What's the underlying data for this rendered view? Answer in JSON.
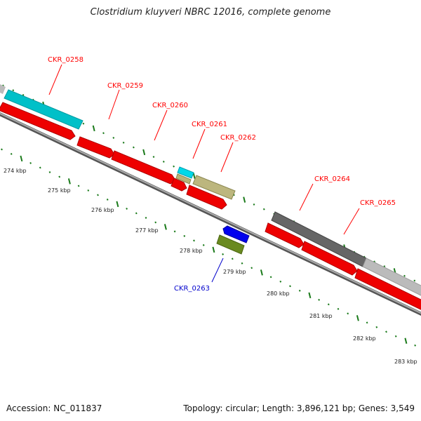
{
  "title": "Clostridium kluyveri NBRC 12016, complete genome",
  "footer": {
    "accession": "Accession: NC_011837",
    "summary": "Topology: circular; Length: 3,896,121 bp; Genes: 3,549"
  },
  "colors": {
    "forward_label": "#ff0000",
    "reverse_label": "#0000cc",
    "tick": "#1a7a1a",
    "backbone": "#888888"
  },
  "ruler": [
    {
      "label": "274 kbp",
      "kbp": 274
    },
    {
      "label": "275 kbp",
      "kbp": 275
    },
    {
      "label": "276 kbp",
      "kbp": 276
    },
    {
      "label": "277 kbp",
      "kbp": 277
    },
    {
      "label": "278 kbp",
      "kbp": 278
    },
    {
      "label": "279 kbp",
      "kbp": 279
    },
    {
      "label": "280 kbp",
      "kbp": 280
    },
    {
      "label": "281 kbp",
      "kbp": 281
    },
    {
      "label": "282 kbp",
      "kbp": 282
    },
    {
      "label": "283 kbp",
      "kbp": 283
    }
  ],
  "gene_labels": [
    {
      "name": "CKR_0258",
      "strand": "forward"
    },
    {
      "name": "CKR_0259",
      "strand": "forward"
    },
    {
      "name": "CKR_0260",
      "strand": "forward"
    },
    {
      "name": "CKR_0261",
      "strand": "forward"
    },
    {
      "name": "CKR_0262",
      "strand": "forward"
    },
    {
      "name": "CKR_0263",
      "strand": "reverse"
    },
    {
      "name": "CKR_0264",
      "strand": "forward"
    },
    {
      "name": "CKR_0265",
      "strand": "forward"
    }
  ]
}
